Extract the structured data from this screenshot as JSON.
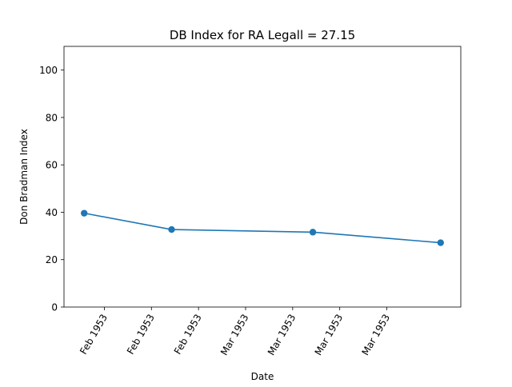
{
  "chart_data": {
    "type": "line",
    "title": "DB Index for RA Legall = 27.15",
    "xlabel": "Date",
    "ylabel": "Don Bradman Index",
    "x_type": "date",
    "x": [
      "1953-02-05",
      "1953-02-18",
      "1953-03-11",
      "1953-03-30"
    ],
    "series": [
      {
        "values": [
          39.6,
          32.7,
          31.6,
          27.15
        ]
      }
    ],
    "ylim": [
      0,
      110
    ],
    "yticks": [
      0,
      20,
      40,
      60,
      80,
      100
    ],
    "xlim": [
      "1953-02-02",
      "1953-04-02"
    ],
    "xticks": [
      {
        "date": "1953-02-08",
        "label": "Feb 1953"
      },
      {
        "date": "1953-02-15",
        "label": "Feb 1953"
      },
      {
        "date": "1953-02-22",
        "label": "Feb 1953"
      },
      {
        "date": "1953-03-01",
        "label": "Mar 1953"
      },
      {
        "date": "1953-03-08",
        "label": "Mar 1953"
      },
      {
        "date": "1953-03-15",
        "label": "Mar 1953"
      },
      {
        "date": "1953-03-22",
        "label": "Mar 1953"
      }
    ],
    "grid": false,
    "colors": {
      "line": "#1f77b4",
      "axes": "#000000"
    }
  }
}
